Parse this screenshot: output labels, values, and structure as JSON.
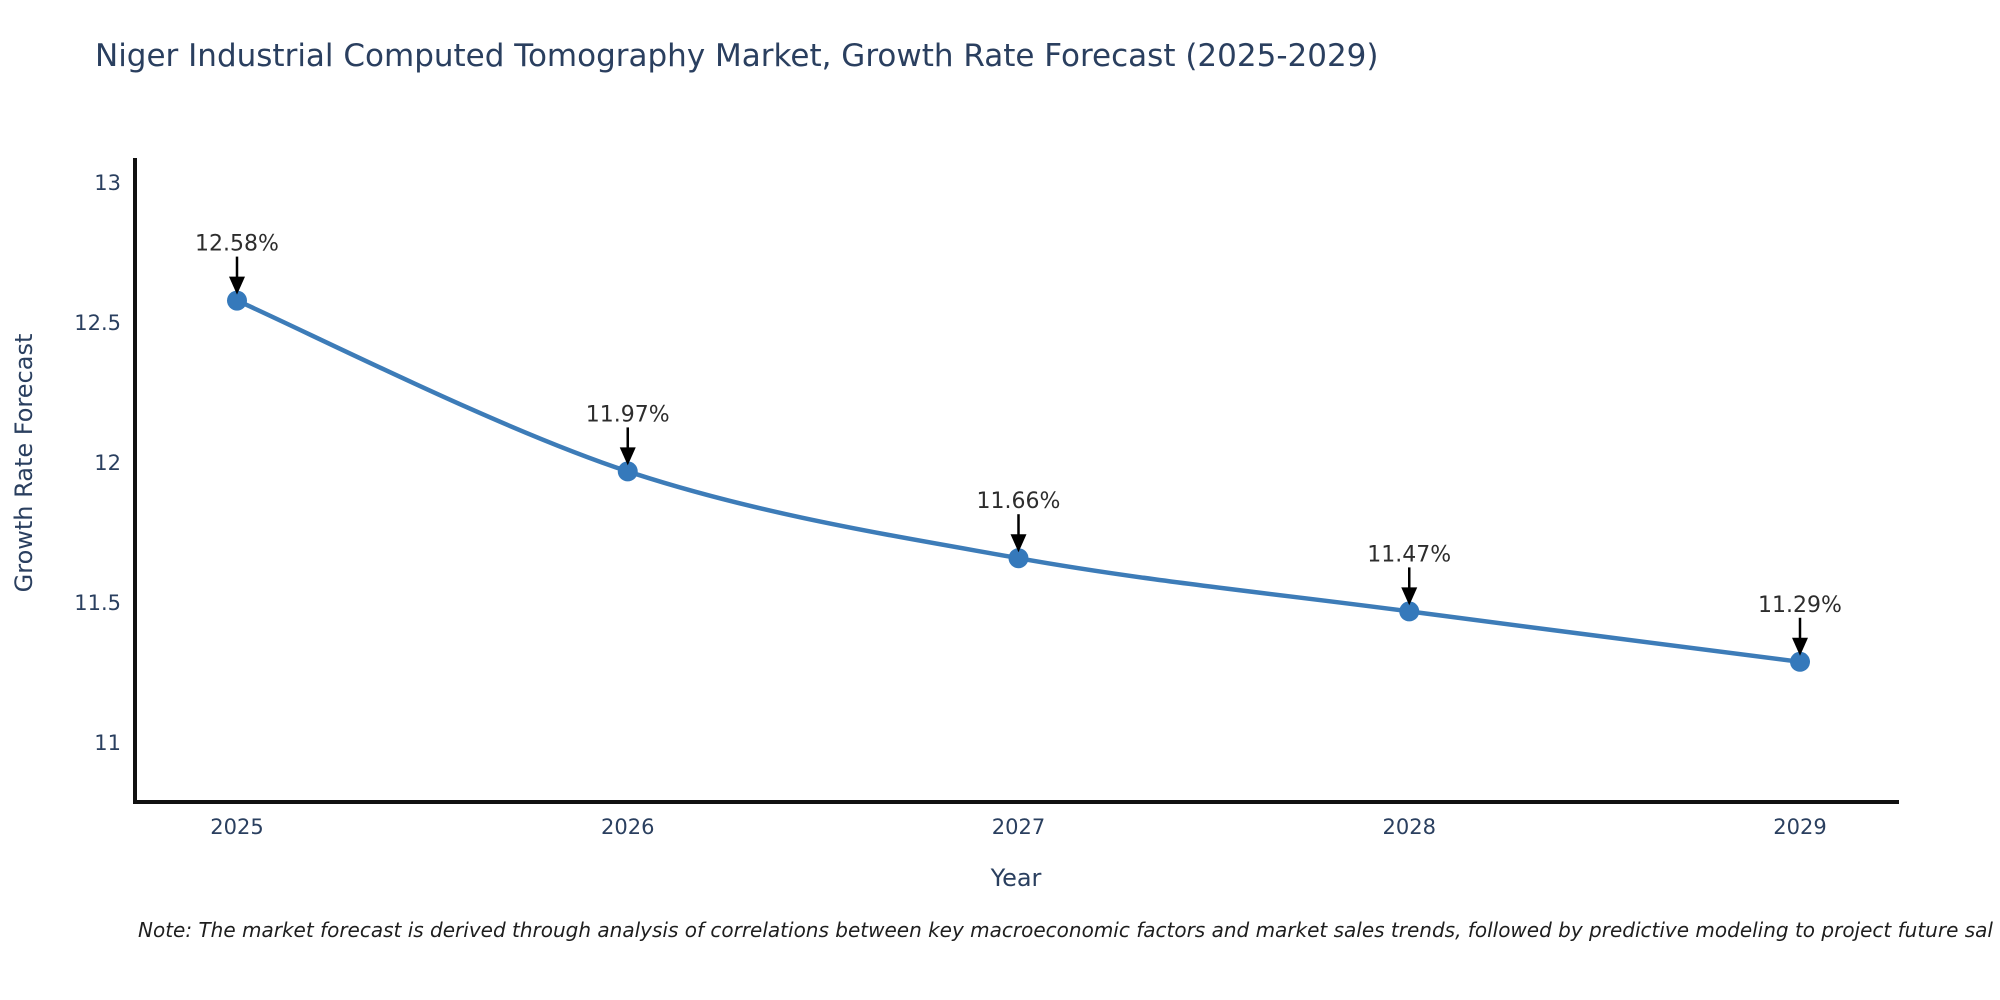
{
  "title": "Niger Industrial Computed Tomography Market, Growth Rate Forecast (2025-2029)",
  "footnote": "Note: The market forecast is derived through analysis of correlations between key macroeconomic factors and market sales trends, followed by predictive modeling to project future sal",
  "chart_data": {
    "type": "line",
    "title": "Niger Industrial Computed Tomography Market, Growth Rate Forecast (2025-2029)",
    "xlabel": "Year",
    "ylabel": "Growth Rate Forecast",
    "categories": [
      "2025",
      "2026",
      "2027",
      "2028",
      "2029"
    ],
    "values": [
      12.58,
      11.97,
      11.66,
      11.47,
      11.29
    ],
    "point_labels": [
      "12.58%",
      "11.97%",
      "11.66%",
      "11.47%",
      "11.29%"
    ],
    "yticks": [
      13,
      12.5,
      12,
      11.5,
      11
    ],
    "ytick_labels": [
      "13",
      "12.5",
      "12",
      "11.5",
      "11"
    ],
    "ylim": [
      10.79,
      13.08
    ],
    "line_shape": "spline",
    "grid": false,
    "legend_position": "none",
    "colors": {
      "line": "#3d7cb8",
      "marker": "#3579bb",
      "axis": "#111111",
      "axis_text": "#2a3f5f",
      "annotation_text": "#2d2d2d",
      "arrow": "#000000",
      "title_text": "#2a3f5f"
    }
  }
}
